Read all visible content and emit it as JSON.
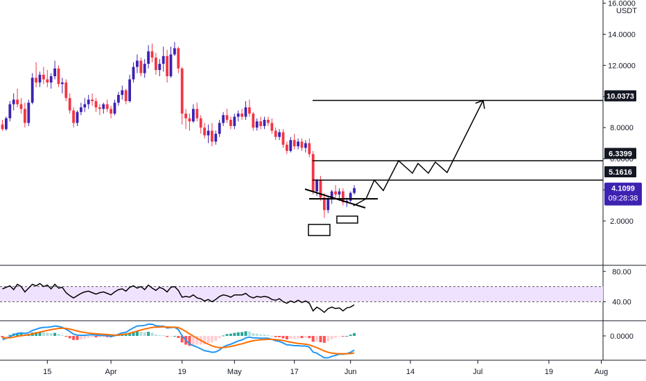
{
  "colors": {
    "up": "#3d22b2",
    "down": "#f23645",
    "rsi_band": "#efe2ff",
    "macd_line": "#2196f3",
    "signal_line": "#ff6d00",
    "hist_pos_strong": "#26a69a",
    "hist_pos_weak": "#b2dfdb",
    "hist_neg_strong": "#ff5252",
    "hist_neg_weak": "#ffcdd2",
    "price_flag": "#3d22b2"
  },
  "chart_data": {
    "type": "candlestick",
    "currency": "USDT",
    "y_ticks": [
      "16.0000",
      "14.0000",
      "12.0000",
      "10.0000",
      "8.0000",
      "6.0000",
      "4.0000",
      "2.0000"
    ],
    "y_tick_values": [
      16,
      14,
      12,
      10,
      8,
      6,
      4,
      2
    ],
    "ylim": [
      -0.85,
      16.2
    ],
    "x_ticks": [
      "15",
      "Apr",
      "19",
      "May",
      "17",
      "Jun",
      "14",
      "Jul",
      "19",
      "Aug"
    ],
    "x_tick_index": [
      12,
      29,
      48,
      62,
      78,
      93,
      109,
      127,
      146,
      160
    ],
    "current_price": "4.1099",
    "countdown": "09:28:38",
    "levels": [
      {
        "value": 10.0373,
        "label": "10.0373"
      },
      {
        "value": 6.3399,
        "label": "6.3399"
      },
      {
        "value": 5.1616,
        "label": "5.1616"
      }
    ],
    "ohlc": [
      [
        8.2,
        8.5,
        7.8,
        7.9
      ],
      [
        7.9,
        8.7,
        7.8,
        8.6
      ],
      [
        8.6,
        9.7,
        8.4,
        9.5
      ],
      [
        9.5,
        10.2,
        9.1,
        9.8
      ],
      [
        9.8,
        10.5,
        9.3,
        9.5
      ],
      [
        9.5,
        9.9,
        8.9,
        9.2
      ],
      [
        9.2,
        9.6,
        8.0,
        8.3
      ],
      [
        8.3,
        9.8,
        8.1,
        9.6
      ],
      [
        9.6,
        11.5,
        9.5,
        11.2
      ],
      [
        11.2,
        12.2,
        10.6,
        10.9
      ],
      [
        10.9,
        11.6,
        10.6,
        11.4
      ],
      [
        11.4,
        11.9,
        10.8,
        11.1
      ],
      [
        11.1,
        11.7,
        10.6,
        10.9
      ],
      [
        10.9,
        11.5,
        10.5,
        11.3
      ],
      [
        11.3,
        12.3,
        11.1,
        11.8
      ],
      [
        11.8,
        12.0,
        10.6,
        10.8
      ],
      [
        10.8,
        11.2,
        10.2,
        10.9
      ],
      [
        10.9,
        11.1,
        9.7,
        9.9
      ],
      [
        9.9,
        10.2,
        8.9,
        9.1
      ],
      [
        9.1,
        9.3,
        8.0,
        8.3
      ],
      [
        8.3,
        9.1,
        8.1,
        9.0
      ],
      [
        9.0,
        9.6,
        8.8,
        9.3
      ],
      [
        9.3,
        9.9,
        9.0,
        9.5
      ],
      [
        9.5,
        10.1,
        9.2,
        9.8
      ],
      [
        9.8,
        10.2,
        9.4,
        9.7
      ],
      [
        9.7,
        9.9,
        9.0,
        9.3
      ],
      [
        9.3,
        9.5,
        8.8,
        9.2
      ],
      [
        9.2,
        9.6,
        8.9,
        9.5
      ],
      [
        9.5,
        9.8,
        9.0,
        9.2
      ],
      [
        9.2,
        9.4,
        8.6,
        8.9
      ],
      [
        8.9,
        9.8,
        8.8,
        9.6
      ],
      [
        9.6,
        10.3,
        9.4,
        10.1
      ],
      [
        10.1,
        10.7,
        9.8,
        10.4
      ],
      [
        10.4,
        10.5,
        9.5,
        9.7
      ],
      [
        9.7,
        11.4,
        9.6,
        11.1
      ],
      [
        11.1,
        12.2,
        10.9,
        11.9
      ],
      [
        11.9,
        12.7,
        11.5,
        12.3
      ],
      [
        12.3,
        12.5,
        11.3,
        11.5
      ],
      [
        11.5,
        12.4,
        11.2,
        12.1
      ],
      [
        12.1,
        13.3,
        11.8,
        12.9
      ],
      [
        12.9,
        13.4,
        12.2,
        12.5
      ],
      [
        12.5,
        12.8,
        11.4,
        11.7
      ],
      [
        11.7,
        12.4,
        11.3,
        12.1
      ],
      [
        12.1,
        13.2,
        11.6,
        12.6
      ],
      [
        12.6,
        13.0,
        10.9,
        11.3
      ],
      [
        11.3,
        13.2,
        11.2,
        12.7
      ],
      [
        12.7,
        13.5,
        12.6,
        13.1
      ],
      [
        13.1,
        13.2,
        11.5,
        11.8
      ],
      [
        11.8,
        11.9,
        8.2,
        8.9
      ],
      [
        8.9,
        9.2,
        7.9,
        8.6
      ],
      [
        8.6,
        8.9,
        7.8,
        8.4
      ],
      [
        8.4,
        9.5,
        8.3,
        9.2
      ],
      [
        9.2,
        9.6,
        8.4,
        8.6
      ],
      [
        8.6,
        8.8,
        7.6,
        8.0
      ],
      [
        8.0,
        8.3,
        7.3,
        7.5
      ],
      [
        7.5,
        8.2,
        7.0,
        7.8
      ],
      [
        7.8,
        8.3,
        6.8,
        7.1
      ],
      [
        7.1,
        7.8,
        6.9,
        7.6
      ],
      [
        7.6,
        8.5,
        7.4,
        8.3
      ],
      [
        8.3,
        9.0,
        8.1,
        8.8
      ],
      [
        8.8,
        9.2,
        8.3,
        8.5
      ],
      [
        8.5,
        8.7,
        7.9,
        8.1
      ],
      [
        8.1,
        8.9,
        7.9,
        8.7
      ],
      [
        8.7,
        9.1,
        8.4,
        8.9
      ],
      [
        8.9,
        9.2,
        8.5,
        8.7
      ],
      [
        8.7,
        9.7,
        8.5,
        9.3
      ],
      [
        9.3,
        9.8,
        8.7,
        8.9
      ],
      [
        8.9,
        9.0,
        7.8,
        8.0
      ],
      [
        8.0,
        8.6,
        7.8,
        8.4
      ],
      [
        8.4,
        8.7,
        7.9,
        8.1
      ],
      [
        8.1,
        8.7,
        7.9,
        8.5
      ],
      [
        8.5,
        8.7,
        8.1,
        8.3
      ],
      [
        8.3,
        8.6,
        7.6,
        7.8
      ],
      [
        7.8,
        8.0,
        7.2,
        7.4
      ],
      [
        7.4,
        7.9,
        7.2,
        7.7
      ],
      [
        7.7,
        7.9,
        6.7,
        6.9
      ],
      [
        6.9,
        7.1,
        6.3,
        6.5
      ],
      [
        6.5,
        7.4,
        6.4,
        7.2
      ],
      [
        7.2,
        7.6,
        6.6,
        6.8
      ],
      [
        6.8,
        7.3,
        6.6,
        7.1
      ],
      [
        7.1,
        7.3,
        6.5,
        6.7
      ],
      [
        6.7,
        7.2,
        6.4,
        7.0
      ],
      [
        7.0,
        7.3,
        6.1,
        6.3
      ],
      [
        6.3,
        6.5,
        3.7,
        3.9
      ],
      [
        3.9,
        4.7,
        3.6,
        4.6
      ],
      [
        4.6,
        4.9,
        3.3,
        3.5
      ],
      [
        3.5,
        3.8,
        2.2,
        2.7
      ],
      [
        2.7,
        3.6,
        2.5,
        3.4
      ],
      [
        3.4,
        4.0,
        3.1,
        3.9
      ],
      [
        3.9,
        4.3,
        3.5,
        3.7
      ],
      [
        3.7,
        4.1,
        3.3,
        3.9
      ],
      [
        3.9,
        4.1,
        3.0,
        3.2
      ],
      [
        3.2,
        3.5,
        2.9,
        3.3
      ],
      [
        3.3,
        3.9,
        3.2,
        3.8
      ],
      [
        3.8,
        4.3,
        3.7,
        4.11
      ]
    ],
    "rsi": {
      "band": [
        40,
        60
      ],
      "y_ticks": [
        "80.00",
        "40.00"
      ],
      "y_tick_values": [
        80,
        40
      ],
      "ylim": [
        15,
        88
      ],
      "values": [
        57,
        59,
        61,
        56,
        63,
        60,
        53,
        58,
        63,
        61,
        64,
        60,
        62,
        57,
        63,
        58,
        59,
        52,
        48,
        45,
        48,
        51,
        53,
        54,
        52,
        50,
        52,
        53,
        51,
        49,
        53,
        56,
        57,
        54,
        59,
        61,
        58,
        60,
        56,
        62,
        58,
        55,
        59,
        57,
        53,
        59,
        60,
        55,
        46,
        47,
        46,
        49,
        45,
        44,
        41,
        43,
        40,
        43,
        47,
        49,
        48,
        46,
        49,
        49,
        49,
        51,
        47,
        45,
        47,
        46,
        47,
        46,
        43,
        42,
        44,
        40,
        38,
        41,
        39,
        42,
        39,
        41,
        38,
        28,
        33,
        30,
        26,
        31,
        33,
        31,
        32,
        28,
        32,
        33,
        36
      ]
    },
    "macd": {
      "y_ticks": [
        "0.0000"
      ],
      "y_tick_values": [
        0
      ],
      "ylim": [
        -1.2,
        0.75
      ],
      "macd": [
        -0.18,
        -0.12,
        -0.04,
        0.06,
        0.12,
        0.15,
        0.12,
        0.16,
        0.27,
        0.33,
        0.39,
        0.42,
        0.43,
        0.45,
        0.49,
        0.47,
        0.42,
        0.33,
        0.22,
        0.09,
        0.04,
        0.03,
        0.03,
        0.05,
        0.06,
        0.04,
        0.02,
        0.02,
        0.01,
        -0.02,
        0.01,
        0.08,
        0.15,
        0.18,
        0.29,
        0.4,
        0.49,
        0.5,
        0.52,
        0.58,
        0.58,
        0.5,
        0.48,
        0.48,
        0.39,
        0.41,
        0.43,
        0.31,
        0.01,
        -0.21,
        -0.39,
        -0.48,
        -0.55,
        -0.64,
        -0.73,
        -0.76,
        -0.81,
        -0.79,
        -0.69,
        -0.55,
        -0.46,
        -0.41,
        -0.33,
        -0.25,
        -0.2,
        -0.1,
        -0.06,
        -0.1,
        -0.1,
        -0.12,
        -0.11,
        -0.12,
        -0.17,
        -0.24,
        -0.27,
        -0.35,
        -0.44,
        -0.45,
        -0.48,
        -0.48,
        -0.5,
        -0.5,
        -0.55,
        -0.8,
        -0.85,
        -0.97,
        -1.08,
        -1.08,
        -1.01,
        -0.96,
        -0.9,
        -0.9,
        -0.88,
        -0.81,
        -0.7
      ],
      "signal": [
        -0.1,
        -0.1,
        -0.09,
        -0.06,
        -0.02,
        0.01,
        0.03,
        0.06,
        0.1,
        0.14,
        0.19,
        0.23,
        0.27,
        0.31,
        0.34,
        0.37,
        0.38,
        0.37,
        0.34,
        0.29,
        0.24,
        0.2,
        0.17,
        0.14,
        0.12,
        0.11,
        0.09,
        0.08,
        0.07,
        0.05,
        0.04,
        0.05,
        0.07,
        0.09,
        0.13,
        0.18,
        0.24,
        0.29,
        0.34,
        0.38,
        0.42,
        0.43,
        0.44,
        0.45,
        0.44,
        0.43,
        0.43,
        0.41,
        0.33,
        0.22,
        0.1,
        -0.01,
        -0.12,
        -0.22,
        -0.32,
        -0.41,
        -0.49,
        -0.55,
        -0.58,
        -0.57,
        -0.55,
        -0.52,
        -0.48,
        -0.43,
        -0.39,
        -0.33,
        -0.28,
        -0.24,
        -0.21,
        -0.19,
        -0.18,
        -0.17,
        -0.17,
        -0.18,
        -0.2,
        -0.23,
        -0.27,
        -0.31,
        -0.34,
        -0.37,
        -0.39,
        -0.41,
        -0.44,
        -0.51,
        -0.58,
        -0.66,
        -0.74,
        -0.81,
        -0.85,
        -0.87,
        -0.88,
        -0.88,
        -0.88,
        -0.87,
        -0.84
      ]
    }
  }
}
